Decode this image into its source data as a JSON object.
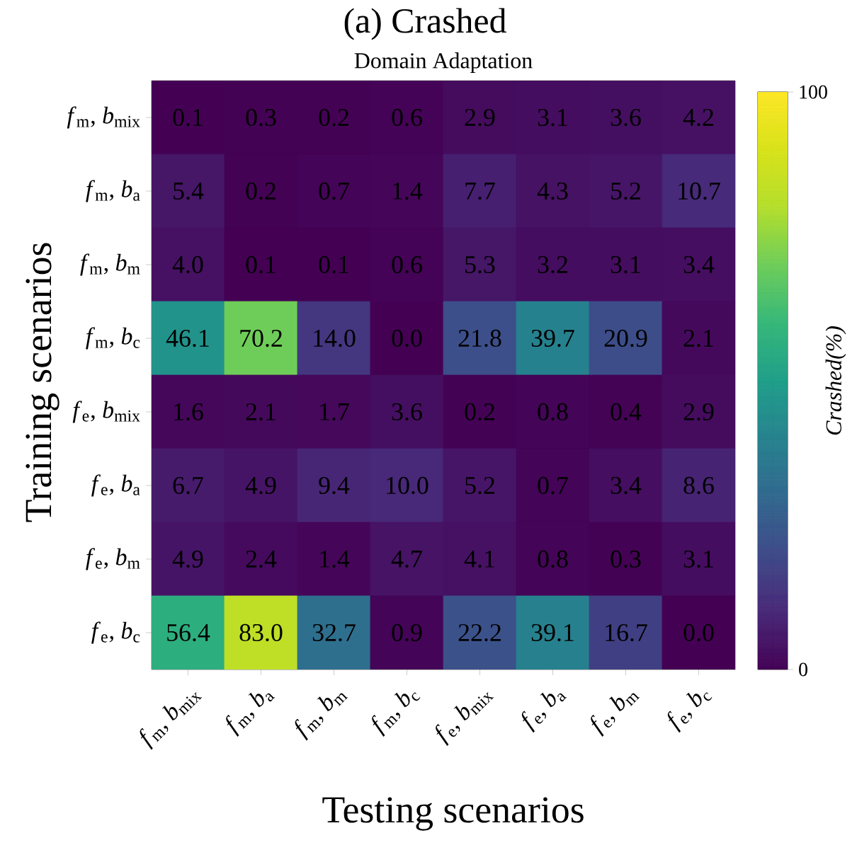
{
  "chart_data": {
    "type": "heatmap",
    "title": "(a) Crashed",
    "subtitle": "Domain Adaptation",
    "xlabel": "Testing scenarios",
    "ylabel": "Training scenarios",
    "clabel": "Crashed(%)",
    "categories": [
      "*f*$_{m}$, *b*$_{mix}$",
      "*f*$_{m}$, *b*$_{a}$",
      "*f*$_{m}$, *b*$_{m}$",
      "*f*$_{m}$, *b*$_{c}$",
      "*f*$_{e}$, *b*$_{mix}$",
      "*f*$_{e}$, *b*$_{a}$",
      "*f*$_{e}$, *b*$_{m}$",
      "*f*$_{e}$, *b*$_{c}$"
    ],
    "y_categories": [
      "*f*$_{m}$, *b*$_{mix}$",
      "*f*$_{m}$, *b*$_{a}$",
      "*f*$_{m}$, *b*$_{m}$",
      "*f*$_{m}$, *b*$_{c}$",
      "*f*$_{e}$, *b*$_{mix}$",
      "*f*$_{e}$, *b*$_{a}$",
      "*f*$_{e}$, *b*$_{m}$",
      "*f*$_{e}$, *b*$_{c}$"
    ],
    "cells": [
      [
        0.1,
        0.3,
        0.2,
        0.6,
        2.9,
        3.1,
        3.6,
        4.2
      ],
      [
        5.4,
        0.2,
        0.7,
        1.4,
        7.7,
        4.3,
        5.2,
        10.7
      ],
      [
        4.0,
        0.1,
        0.1,
        0.6,
        5.3,
        3.2,
        3.1,
        3.4
      ],
      [
        46.1,
        70.2,
        14.0,
        0.0,
        21.8,
        39.7,
        20.9,
        2.1
      ],
      [
        1.6,
        2.1,
        1.7,
        3.6,
        0.2,
        0.8,
        0.4,
        2.9
      ],
      [
        6.7,
        4.9,
        9.4,
        10.0,
        5.2,
        0.7,
        3.4,
        8.6
      ],
      [
        4.9,
        2.4,
        1.4,
        4.7,
        4.1,
        0.8,
        0.3,
        3.1
      ],
      [
        56.4,
        83.0,
        32.7,
        0.9,
        22.2,
        39.1,
        16.7,
        0.0
      ]
    ],
    "cell_labels": [
      [
        "0.1",
        "0.3",
        "0.2",
        "0.6",
        "2.9",
        "3.1",
        "3.6",
        "4.2"
      ],
      [
        "5.4",
        "0.2",
        "0.7",
        "1.4",
        "7.7",
        "4.3",
        "5.2",
        "10.7"
      ],
      [
        "4.0",
        "0.1",
        "0.1",
        "0.6",
        "5.3",
        "3.2",
        "3.1",
        "3.4"
      ],
      [
        "46.1",
        "70.2",
        "14.0",
        "0.0",
        "21.8",
        "39.7",
        "20.9",
        "2.1"
      ],
      [
        "1.6",
        "2.1",
        "1.7",
        "3.6",
        "0.2",
        "0.8",
        "0.4",
        "2.9"
      ],
      [
        "6.7",
        "4.9",
        "9.4",
        "10.0",
        "5.2",
        "0.7",
        "3.4",
        "8.6"
      ],
      [
        "4.9",
        "2.4",
        "1.4",
        "4.7",
        "4.1",
        "0.8",
        "0.3",
        "3.1"
      ],
      [
        "56.4",
        "83.0",
        "32.7",
        "0.9",
        "22.2",
        "39.1",
        "16.7",
        "0.0"
      ]
    ],
    "clim": [
      0,
      100
    ],
    "cticks": [
      0,
      100
    ]
  }
}
